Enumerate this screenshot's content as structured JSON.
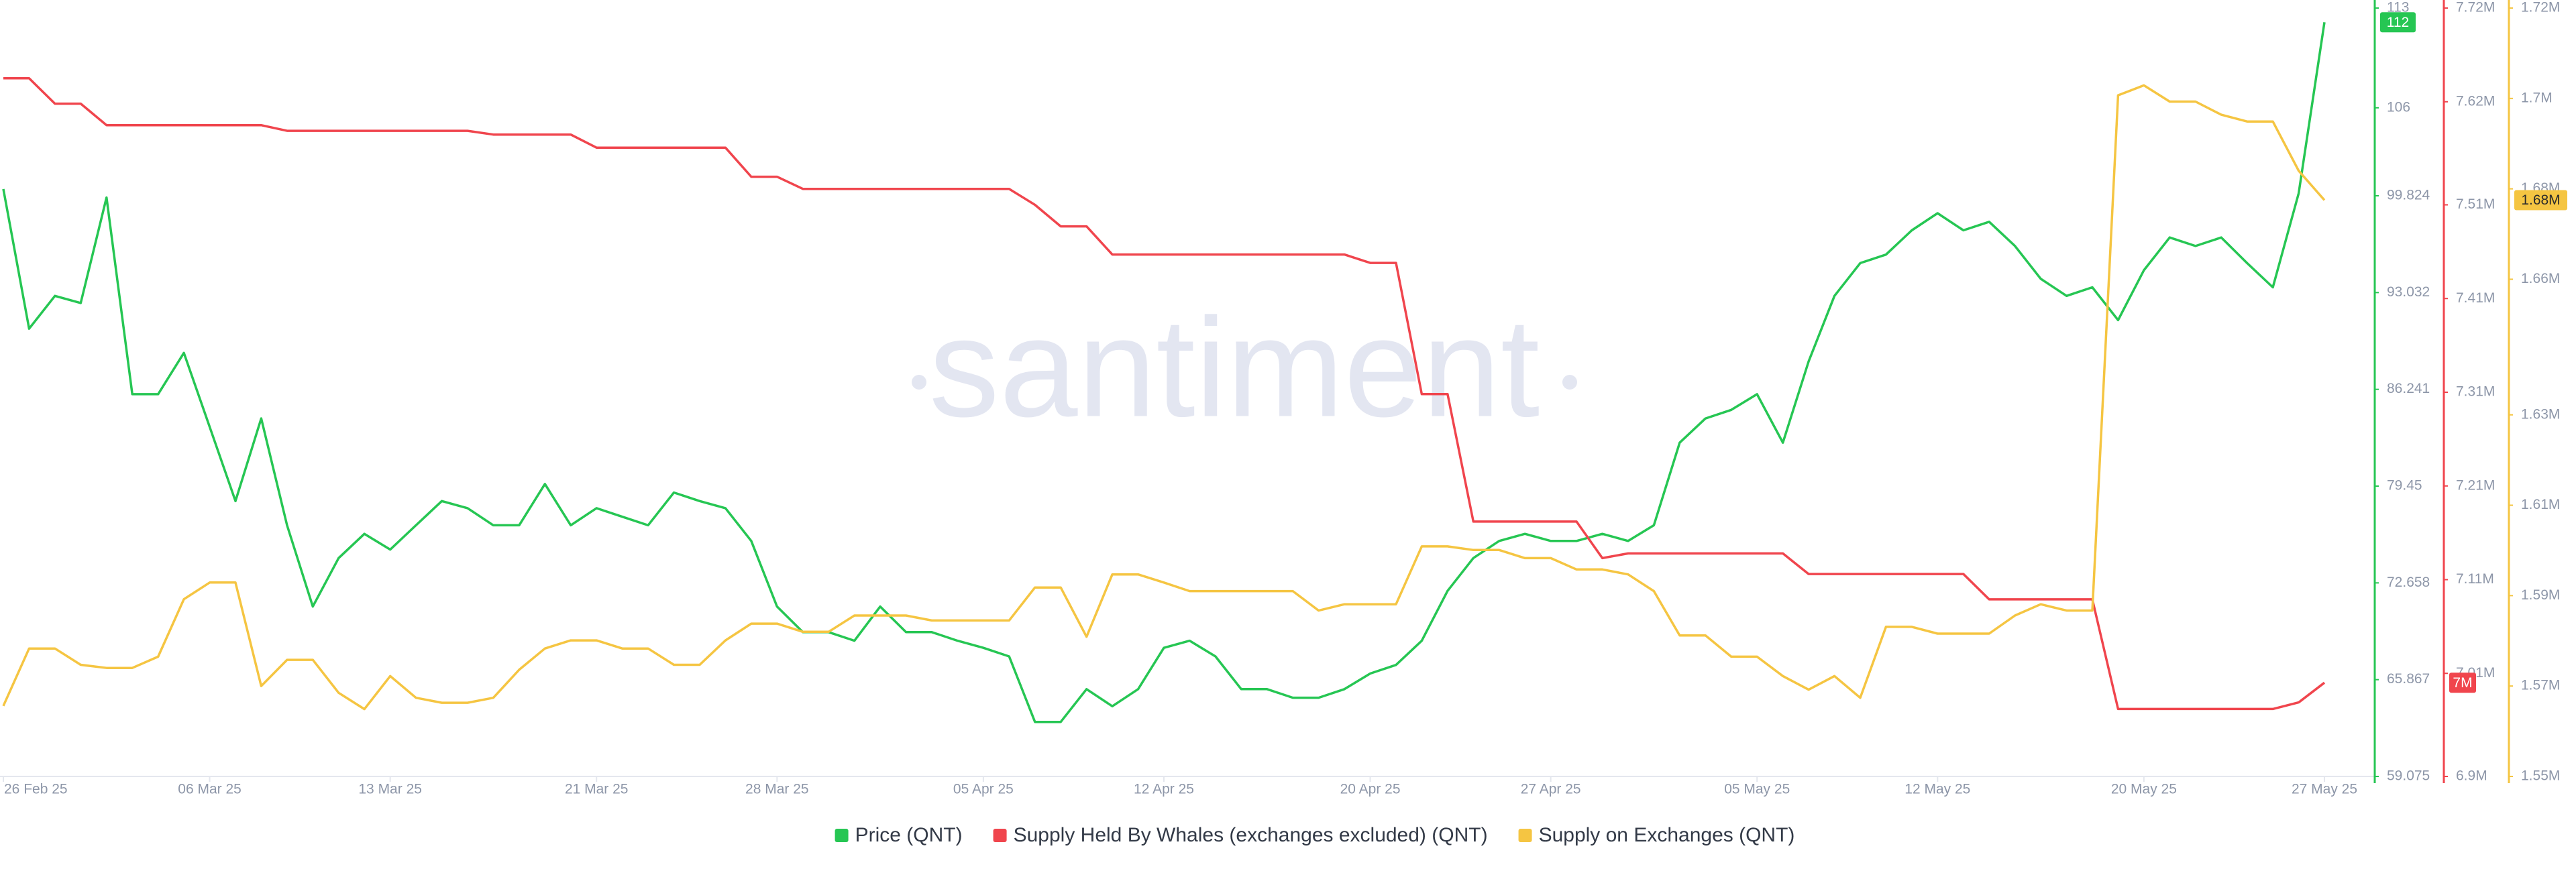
{
  "chart_data": {
    "type": "line",
    "watermark": "santiment",
    "x": [
      "2025-02-26",
      "2025-02-27",
      "2025-02-28",
      "2025-03-01",
      "2025-03-02",
      "2025-03-03",
      "2025-03-04",
      "2025-03-05",
      "2025-03-06",
      "2025-03-07",
      "2025-03-08",
      "2025-03-09",
      "2025-03-10",
      "2025-03-11",
      "2025-03-12",
      "2025-03-13",
      "2025-03-14",
      "2025-03-15",
      "2025-03-16",
      "2025-03-17",
      "2025-03-18",
      "2025-03-19",
      "2025-03-20",
      "2025-03-21",
      "2025-03-22",
      "2025-03-23",
      "2025-03-24",
      "2025-03-25",
      "2025-03-26",
      "2025-03-27",
      "2025-03-28",
      "2025-03-29",
      "2025-03-30",
      "2025-03-31",
      "2025-04-01",
      "2025-04-02",
      "2025-04-03",
      "2025-04-04",
      "2025-04-05",
      "2025-04-06",
      "2025-04-07",
      "2025-04-08",
      "2025-04-09",
      "2025-04-10",
      "2025-04-11",
      "2025-04-12",
      "2025-04-13",
      "2025-04-14",
      "2025-04-15",
      "2025-04-16",
      "2025-04-17",
      "2025-04-18",
      "2025-04-19",
      "2025-04-20",
      "2025-04-21",
      "2025-04-22",
      "2025-04-23",
      "2025-04-24",
      "2025-04-25",
      "2025-04-26",
      "2025-04-27",
      "2025-04-28",
      "2025-04-29",
      "2025-04-30",
      "2025-05-01",
      "2025-05-02",
      "2025-05-03",
      "2025-05-04",
      "2025-05-05",
      "2025-05-06",
      "2025-05-07",
      "2025-05-08",
      "2025-05-09",
      "2025-05-10",
      "2025-05-11",
      "2025-05-12",
      "2025-05-13",
      "2025-05-14",
      "2025-05-15",
      "2025-05-16",
      "2025-05-17",
      "2025-05-18",
      "2025-05-19",
      "2025-05-20",
      "2025-05-21",
      "2025-05-22",
      "2025-05-23",
      "2025-05-24",
      "2025-05-25",
      "2025-05-26",
      "2025-05-27"
    ],
    "xlim": [
      "2025-02-26",
      "2025-05-27"
    ],
    "xticks": [
      {
        "value": "2025-02-26",
        "label": "26 Feb 25"
      },
      {
        "value": "2025-03-06",
        "label": "06 Mar 25"
      },
      {
        "value": "2025-03-13",
        "label": "13 Mar 25"
      },
      {
        "value": "2025-03-21",
        "label": "21 Mar 25"
      },
      {
        "value": "2025-03-28",
        "label": "28 Mar 25"
      },
      {
        "value": "2025-04-05",
        "label": "05 Apr 25"
      },
      {
        "value": "2025-04-12",
        "label": "12 Apr 25"
      },
      {
        "value": "2025-04-20",
        "label": "20 Apr 25"
      },
      {
        "value": "2025-04-27",
        "label": "27 Apr 25"
      },
      {
        "value": "2025-05-05",
        "label": "05 May 25"
      },
      {
        "value": "2025-05-12",
        "label": "12 May 25"
      },
      {
        "value": "2025-05-20",
        "label": "20 May 25"
      },
      {
        "value": "2025-05-27",
        "label": "27 May 25"
      }
    ],
    "ylim": [
      59.075,
      113
    ],
    "yticks": [
      59.075,
      65.867,
      72.658,
      79.45,
      86.241,
      93.032,
      99.824,
      106,
      113
    ],
    "y2lim": [
      6900000,
      7720000
    ],
    "y2ticks": [
      {
        "value": 6900000,
        "label": "6.9M"
      },
      {
        "value": 7010000,
        "label": "7.01M"
      },
      {
        "value": 7110000,
        "label": "7.11M"
      },
      {
        "value": 7210000,
        "label": "7.21M"
      },
      {
        "value": 7310000,
        "label": "7.31M"
      },
      {
        "value": 7410000,
        "label": "7.41M"
      },
      {
        "value": 7510000,
        "label": "7.51M"
      },
      {
        "value": 7620000,
        "label": "7.62M"
      },
      {
        "value": 7720000,
        "label": "7.72M"
      }
    ],
    "y3lim": [
      1550000,
      1720000
    ],
    "y3ticks": [
      {
        "value": 1550000,
        "label": "1.55M"
      },
      {
        "value": 1570000,
        "label": "1.57M"
      },
      {
        "value": 1590000,
        "label": "1.59M"
      },
      {
        "value": 1610000,
        "label": "1.61M"
      },
      {
        "value": 1630000,
        "label": "1.63M"
      },
      {
        "value": 1660000,
        "label": "1.66M"
      },
      {
        "value": 1680000,
        "label": "1.68M"
      },
      {
        "value": 1700000,
        "label": "1.7M"
      },
      {
        "value": 1720000,
        "label": "1.72M"
      }
    ],
    "series": [
      {
        "name": "Price (QNT)",
        "color": "#26c653",
        "axis": "y",
        "last_label": "112",
        "values": [
          100.3,
          90.5,
          92.8,
          92.3,
          99.7,
          85.9,
          85.9,
          88.8,
          83.6,
          78.4,
          84.2,
          76.7,
          71.0,
          74.4,
          76.1,
          75.0,
          76.7,
          78.4,
          77.9,
          76.7,
          76.7,
          79.6,
          76.7,
          77.9,
          77.3,
          76.7,
          79.0,
          78.4,
          77.9,
          75.6,
          71.0,
          69.2,
          69.2,
          68.6,
          71.0,
          69.2,
          69.2,
          68.6,
          68.1,
          67.5,
          62.9,
          62.9,
          65.2,
          64.0,
          65.2,
          68.1,
          68.6,
          67.5,
          65.2,
          65.2,
          64.6,
          64.6,
          65.2,
          66.3,
          66.9,
          68.6,
          72.1,
          74.4,
          75.6,
          76.1,
          75.6,
          75.6,
          76.1,
          75.6,
          76.7,
          82.5,
          84.2,
          84.8,
          85.9,
          82.5,
          88.2,
          92.8,
          95.1,
          95.7,
          97.4,
          98.6,
          97.4,
          98.0,
          96.3,
          94.0,
          92.8,
          93.4,
          91.1,
          94.6,
          96.9,
          96.3,
          96.9,
          95.1,
          93.4,
          100.0,
          112
        ]
      },
      {
        "name": "Supply Held By Whales (exchanges excluded) (QNT)",
        "color": "#f0454d",
        "axis": "y2",
        "last_label": "7M",
        "values": [
          7645000,
          7645000,
          7618000,
          7618000,
          7595000,
          7595000,
          7595000,
          7595000,
          7595000,
          7595000,
          7595000,
          7589000,
          7589000,
          7589000,
          7589000,
          7589000,
          7589000,
          7589000,
          7589000,
          7585000,
          7585000,
          7585000,
          7585000,
          7571000,
          7571000,
          7571000,
          7571000,
          7571000,
          7571000,
          7540000,
          7540000,
          7527000,
          7527000,
          7527000,
          7527000,
          7527000,
          7527000,
          7527000,
          7527000,
          7527000,
          7510000,
          7487000,
          7487000,
          7457000,
          7457000,
          7457000,
          7457000,
          7457000,
          7457000,
          7457000,
          7457000,
          7457000,
          7457000,
          7448000,
          7448000,
          7308000,
          7308000,
          7172000,
          7172000,
          7172000,
          7172000,
          7172000,
          7133000,
          7138000,
          7138000,
          7138000,
          7138000,
          7138000,
          7138000,
          7138000,
          7116000,
          7116000,
          7116000,
          7116000,
          7116000,
          7116000,
          7116000,
          7089000,
          7089000,
          7089000,
          7089000,
          7089000,
          6972000,
          6972000,
          6972000,
          6972000,
          6972000,
          6972000,
          6972000,
          6979000,
          7000000
        ]
      },
      {
        "name": "Supply on Exchanges (QNT)",
        "color": "#f5c542",
        "axis": "y3",
        "last_label": "1.68M",
        "values": [
          1565600,
          1578300,
          1578300,
          1574700,
          1574000,
          1574000,
          1576500,
          1589200,
          1592900,
          1592900,
          1570000,
          1575800,
          1575800,
          1568500,
          1564900,
          1572200,
          1567400,
          1566300,
          1566300,
          1567400,
          1573600,
          1578300,
          1580100,
          1580100,
          1578300,
          1578300,
          1574700,
          1574700,
          1580100,
          1583800,
          1583800,
          1582000,
          1582000,
          1585600,
          1585600,
          1585600,
          1584500,
          1584500,
          1584500,
          1584500,
          1591800,
          1591800,
          1580900,
          1594700,
          1594700,
          1592900,
          1591000,
          1591000,
          1591000,
          1591000,
          1591000,
          1586700,
          1588100,
          1588100,
          1588100,
          1600900,
          1600900,
          1600100,
          1600100,
          1598300,
          1598300,
          1595800,
          1595800,
          1594700,
          1591000,
          1581200,
          1581200,
          1576500,
          1576500,
          1572200,
          1569200,
          1572200,
          1567400,
          1583100,
          1583100,
          1581600,
          1581600,
          1581600,
          1585600,
          1588100,
          1586700,
          1586700,
          1700700,
          1702900,
          1699300,
          1699300,
          1696400,
          1694900,
          1694900,
          1684000,
          1677500
        ]
      }
    ]
  }
}
